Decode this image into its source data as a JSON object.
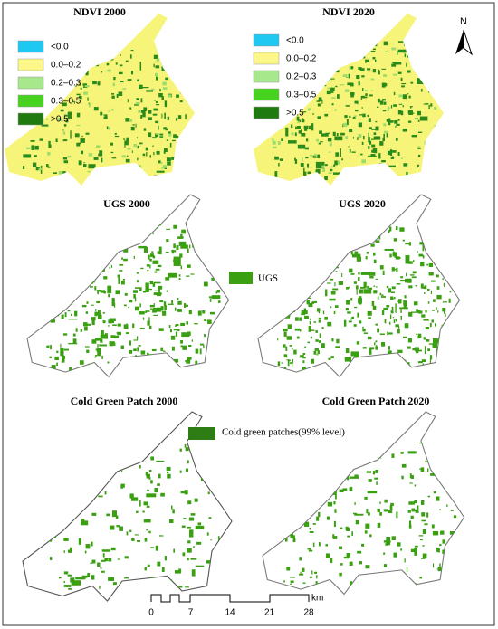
{
  "panels": [
    {
      "title": "NDVI 2000"
    },
    {
      "title": "NDVI 2020"
    },
    {
      "title": "UGS 2000"
    },
    {
      "title": "UGS 2020"
    },
    {
      "title": "Cold Green Patch 2000"
    },
    {
      "title": "Cold Green Patch 2020"
    }
  ],
  "ndvi_legend_2000": [
    "<0.0",
    "0.0–0.2",
    "0.2–0.3",
    "0.3–0.5",
    ">0.5"
  ],
  "ndvi_legend_2020": [
    "<0.0",
    "0.0–0.2",
    "0.2–0.3",
    "0.3–0.5",
    ">0.5"
  ],
  "north": "N",
  "ugs_legend": "UGS",
  "cold_legend": "Cold green patches(99% level)",
  "scale_bar": {
    "labels": [
      0,
      7,
      14,
      21,
      28
    ],
    "unit": "km"
  }
}
